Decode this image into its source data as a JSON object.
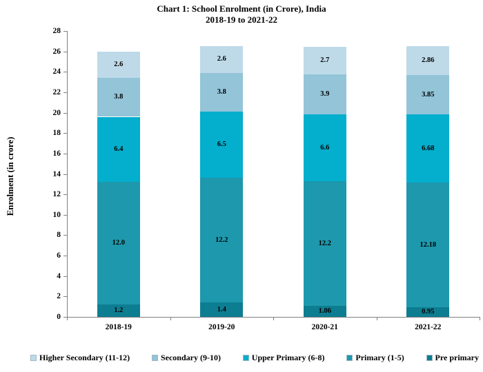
{
  "title": {
    "line1": "Chart 1: School Enrolment (in Crore), India",
    "line2": "2018-19 to 2021-22"
  },
  "chart_data": {
    "type": "bar",
    "stacked": true,
    "title": "Chart 1: School Enrolment (in Crore), India 2018-19 to 2021-22",
    "xlabel": "",
    "ylabel": "Enrolment (in crore)",
    "ylim": [
      0,
      28
    ],
    "ytick_step": 2,
    "grid": false,
    "legend_position": "bottom",
    "categories": [
      "2018-19",
      "2019-20",
      "2020-21",
      "2021-22"
    ],
    "series": [
      {
        "name": "Pre primary",
        "color": "#0d7d91",
        "values": [
          1.2,
          1.4,
          1.06,
          0.95
        ],
        "labels": [
          "1.2",
          "1.4",
          "1.06",
          "0.95"
        ]
      },
      {
        "name": "Primary (1-5)",
        "color": "#1e98ac",
        "values": [
          12.0,
          12.2,
          12.2,
          12.18
        ],
        "labels": [
          "12.0",
          "12.2",
          "12.2",
          "12.18"
        ]
      },
      {
        "name": "Upper Primary (6-8)",
        "color": "#04aecd",
        "values": [
          6.4,
          6.5,
          6.6,
          6.68
        ],
        "labels": [
          "6.4",
          "6.5",
          "6.6",
          "6.68"
        ]
      },
      {
        "name": "Secondary (9-10)",
        "color": "#93c4d8",
        "values": [
          3.8,
          3.8,
          3.9,
          3.85
        ],
        "labels": [
          "3.8",
          "3.8",
          "3.9",
          "3.85"
        ]
      },
      {
        "name": "Higher Secondary (11-12)",
        "color": "#bedae8",
        "values": [
          2.6,
          2.6,
          2.7,
          2.86
        ],
        "labels": [
          "2.6",
          "2.6",
          "2.7",
          "2.86"
        ]
      }
    ],
    "legend_order": [
      "Higher Secondary (11-12)",
      "Secondary (9-10)",
      "Upper Primary (6-8)",
      "Primary (1-5)",
      "Pre primary"
    ]
  },
  "colors": {
    "axis": "#7f7f7f",
    "text": "#000000",
    "background": "#ffffff"
  }
}
